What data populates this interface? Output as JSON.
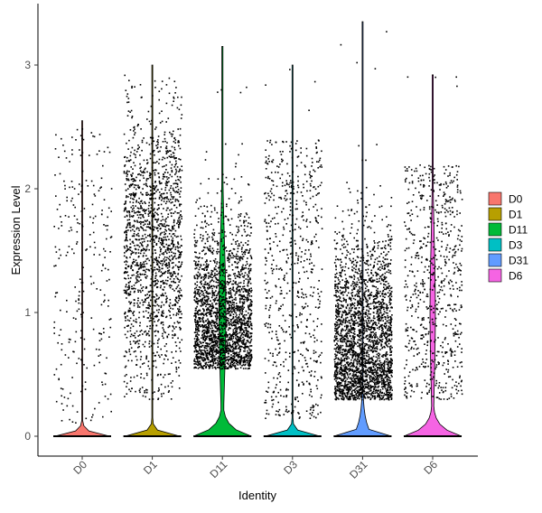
{
  "chart_data": {
    "type": "violin",
    "xlabel": "Identity",
    "ylabel": "Expression Level",
    "categories": [
      "D0",
      "D1",
      "D11",
      "D3",
      "D31",
      "D6"
    ],
    "yticks": [
      0,
      1,
      2,
      3
    ],
    "ylim": [
      -0.2,
      3.42
    ],
    "jitter_points": true,
    "legend": {
      "placement": "right",
      "entries": [
        "D0",
        "D1",
        "D11",
        "D3",
        "D31",
        "D6"
      ]
    },
    "series": [
      {
        "name": "D0",
        "color": "#F8766D",
        "max": 2.55,
        "zero_fraction": 0.75,
        "approx_points": 260,
        "nonzero_range": [
          0.1,
          2.5
        ]
      },
      {
        "name": "D1",
        "color": "#B79F00",
        "max": 3.0,
        "zero_fraction": 0.35,
        "approx_points": 1700,
        "nonzero_range": [
          0.3,
          2.9
        ]
      },
      {
        "name": "D11",
        "color": "#00BA38",
        "max": 3.15,
        "zero_fraction": 0.2,
        "approx_points": 2300,
        "nonzero_range": [
          0.2,
          2.5
        ]
      },
      {
        "name": "D3",
        "color": "#00BFC4",
        "max": 3.0,
        "zero_fraction": 0.7,
        "approx_points": 650,
        "nonzero_range": [
          0.15,
          2.4
        ]
      },
      {
        "name": "D31",
        "color": "#619CFF",
        "max": 3.35,
        "zero_fraction": 0.15,
        "approx_points": 2600,
        "nonzero_range": [
          0.3,
          2.8
        ]
      },
      {
        "name": "D6",
        "color": "#F564E3",
        "max": 2.92,
        "zero_fraction": 0.3,
        "approx_points": 700,
        "nonzero_range": [
          0.2,
          2.4
        ]
      }
    ]
  }
}
